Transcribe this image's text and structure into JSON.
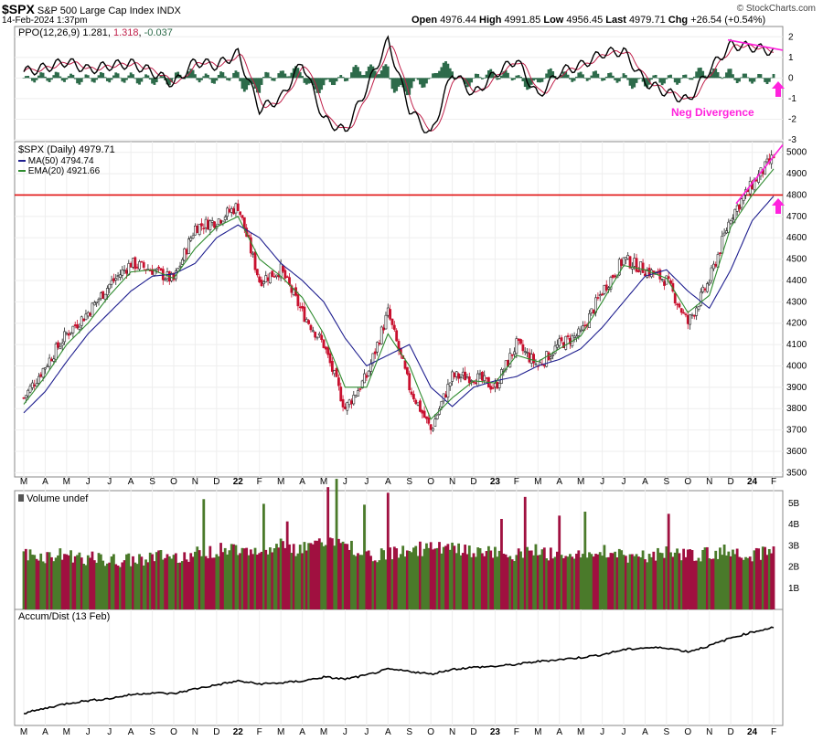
{
  "header": {
    "symbol": "$SPX",
    "name": "S&P 500 Large Cap Index",
    "exchange": "INDX",
    "date": "14-Feb-2024 1:37pm",
    "watermark": "© StockCharts.com",
    "open_label": "Open",
    "open": "4976.44",
    "high_label": "High",
    "high": "4991.85",
    "low_label": "Low",
    "low": "4956.45",
    "last_label": "Last",
    "last": "4979.71",
    "chg_label": "Chg",
    "chg": "+26.54 (+0.54%)"
  },
  "ppo_panel": {
    "label": "PPO(12,26,9)",
    "ppo": "1.281",
    "signal": "1.318",
    "hist": "-0.037",
    "annotation": "Neg Divergence",
    "ylim": [
      -3,
      2.5
    ],
    "ticks": [
      "2",
      "1",
      "0",
      "-1",
      "-2",
      "-3"
    ]
  },
  "price_panel": {
    "title": "$SPX (Daily)",
    "last": "4979.71",
    "ma_label": "MA(50)",
    "ma_value": "4794.74",
    "ema_label": "EMA(20)",
    "ema_value": "4921.66",
    "ticks": [
      "5000",
      "4900",
      "4800",
      "4700",
      "4600",
      "4500",
      "4400",
      "4300",
      "4200",
      "4100",
      "4000",
      "3900",
      "3800",
      "3700",
      "3600",
      "3500"
    ],
    "resistance": 4800
  },
  "volume_panel": {
    "label": "Volume undef",
    "ticks": [
      "5B",
      "4B",
      "3B",
      "2B",
      "1B"
    ]
  },
  "ad_panel": {
    "label": "Accum/Dist (13 Feb)"
  },
  "x_axis": {
    "labels": [
      "M",
      "A",
      "M",
      "J",
      "J",
      "A",
      "S",
      "O",
      "N",
      "D",
      "22",
      "F",
      "M",
      "A",
      "M",
      "J",
      "J",
      "A",
      "S",
      "O",
      "N",
      "D",
      "23",
      "F",
      "M",
      "A",
      "M",
      "J",
      "J",
      "A",
      "S",
      "O",
      "N",
      "D",
      "24",
      "F"
    ]
  },
  "colors": {
    "up": "#1a8a1a",
    "down": "#c8102e",
    "ma50": "#1f1f8f",
    "ema20": "#2e8b2e",
    "resistance": "#e01010",
    "annotation": "#ff22dd",
    "vol_up": "#4a7a2a",
    "vol_down": "#a01040",
    "ppo_hist": "#2d6b4a",
    "signal": "#c0204a"
  },
  "chart_data": {
    "type": "line",
    "title": "$SPX (Daily)",
    "x": [
      "2021-03",
      "2021-04",
      "2021-05",
      "2021-06",
      "2021-07",
      "2021-08",
      "2021-09",
      "2021-10",
      "2021-11",
      "2021-12",
      "2022-01",
      "2022-02",
      "2022-03",
      "2022-04",
      "2022-05",
      "2022-06",
      "2022-07",
      "2022-08",
      "2022-09",
      "2022-10",
      "2022-11",
      "2022-12",
      "2023-01",
      "2023-02",
      "2023-03",
      "2023-04",
      "2023-05",
      "2023-06",
      "2023-07",
      "2023-08",
      "2023-09",
      "2023-10",
      "2023-11",
      "2023-12",
      "2024-01",
      "2024-02"
    ],
    "series": [
      {
        "name": "$SPX (Daily)",
        "values": [
          3850,
          4000,
          4150,
          4250,
          4380,
          4480,
          4450,
          4400,
          4650,
          4680,
          4750,
          4400,
          4450,
          4250,
          4100,
          3800,
          3950,
          4250,
          3900,
          3700,
          3950,
          3950,
          3900,
          4100,
          4000,
          4100,
          4150,
          4350,
          4500,
          4450,
          4400,
          4200,
          4400,
          4700,
          4850,
          4980
        ]
      },
      {
        "name": "MA(50)",
        "values": [
          3780,
          3880,
          4020,
          4150,
          4250,
          4350,
          4420,
          4430,
          4480,
          4600,
          4660,
          4600,
          4480,
          4400,
          4300,
          4130,
          4000,
          4050,
          4100,
          3900,
          3810,
          3900,
          3930,
          3950,
          4000,
          4030,
          4080,
          4180,
          4300,
          4420,
          4450,
          4350,
          4270,
          4450,
          4680,
          4795
        ]
      },
      {
        "name": "EMA(20)",
        "values": [
          3820,
          3950,
          4100,
          4200,
          4330,
          4440,
          4450,
          4410,
          4550,
          4650,
          4700,
          4500,
          4420,
          4320,
          4150,
          3900,
          3900,
          4150,
          4000,
          3750,
          3850,
          3930,
          3920,
          4050,
          4020,
          4080,
          4140,
          4300,
          4470,
          4450,
          4410,
          4250,
          4330,
          4650,
          4800,
          4922
        ]
      }
    ],
    "ylim": [
      3480,
      5050
    ],
    "resistance_level": 4800,
    "volume_B": [
      2.6,
      2.5,
      2.6,
      2.4,
      2.3,
      2.3,
      2.5,
      2.5,
      2.6,
      2.8,
      2.9,
      2.9,
      3.0,
      2.8,
      3.2,
      3.1,
      2.5,
      2.6,
      2.8,
      2.9,
      2.8,
      2.7,
      2.7,
      2.5,
      2.9,
      2.4,
      2.6,
      2.8,
      2.5,
      2.5,
      2.7,
      2.6,
      2.6,
      2.8,
      2.6,
      2.8
    ],
    "ppo": [
      0.3,
      0.5,
      0.8,
      0.4,
      0.6,
      0.7,
      0.3,
      -0.3,
      0.8,
      0.6,
      1.2,
      -1.5,
      -1.0,
      0.8,
      -2.0,
      -2.6,
      -0.5,
      1.8,
      -1.5,
      -2.8,
      0.3,
      -0.8,
      0.2,
      0.9,
      -0.9,
      0.3,
      0.6,
      1.2,
      1.3,
      -0.2,
      -0.7,
      -1.1,
      0.4,
      1.6,
      1.5,
      1.28
    ],
    "accum_dist_trend": [
      0.05,
      0.1,
      0.15,
      0.18,
      0.2,
      0.24,
      0.26,
      0.25,
      0.3,
      0.34,
      0.38,
      0.35,
      0.36,
      0.38,
      0.42,
      0.4,
      0.44,
      0.5,
      0.48,
      0.45,
      0.5,
      0.52,
      0.53,
      0.55,
      0.58,
      0.6,
      0.62,
      0.65,
      0.7,
      0.72,
      0.72,
      0.68,
      0.74,
      0.82,
      0.88,
      0.93
    ]
  }
}
